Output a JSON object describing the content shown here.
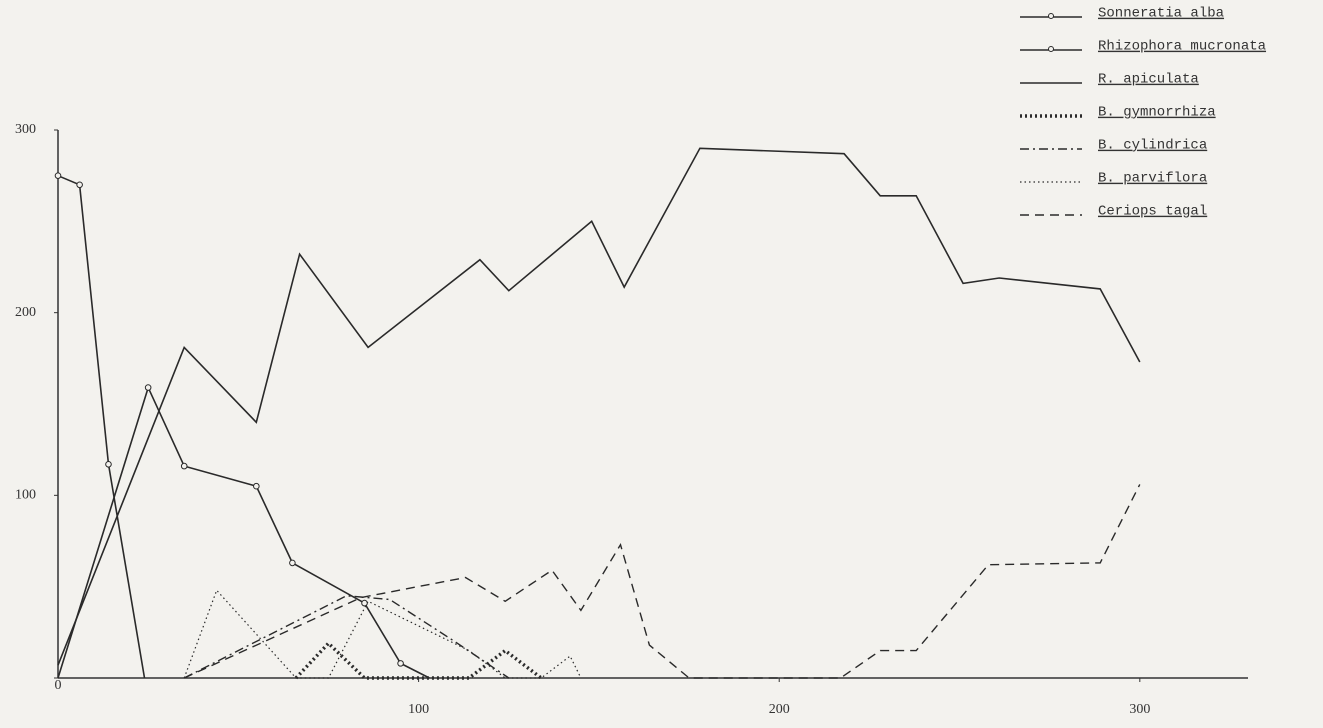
{
  "chart_data": {
    "type": "line",
    "xlim": [
      0,
      330
    ],
    "ylim": [
      0,
      300
    ],
    "xticks": [
      100,
      200,
      300
    ],
    "yticks": [
      0,
      100,
      200,
      300
    ],
    "legend": "top-right",
    "series": [
      {
        "name": "Sonneratia alba",
        "color": "#2a2a2a",
        "line_style": "solid",
        "marker": "circle",
        "x": [
          0,
          6,
          14,
          24
        ],
        "values": [
          275,
          270,
          117,
          0
        ]
      },
      {
        "name": "Rhizophora mucronata",
        "color": "#2a2a2a",
        "line_style": "solid",
        "marker": "circle",
        "x": [
          0,
          25,
          35,
          55,
          65,
          85,
          95,
          103
        ],
        "values": [
          0,
          159,
          116,
          105,
          63,
          41,
          8,
          0
        ]
      },
      {
        "name": "R. apiculata",
        "color": "#2a2a2a",
        "line_style": "solid",
        "x": [
          0,
          35,
          55,
          67,
          86,
          117,
          125,
          148,
          157,
          178,
          218,
          228,
          238,
          251,
          261,
          289,
          300
        ],
        "values": [
          7,
          181,
          140,
          232,
          181,
          229,
          212,
          250,
          214,
          290,
          287,
          264,
          264,
          216,
          219,
          213,
          173
        ]
      },
      {
        "name": "B. gymnorrhiza",
        "color": "#2a2a2a",
        "line_style": "heavy-dotted",
        "x": [
          66,
          75,
          85,
          114,
          124,
          134
        ],
        "values": [
          0,
          19,
          0,
          0,
          15,
          0
        ]
      },
      {
        "name": "B. cylindrica",
        "color": "#2a2a2a",
        "line_style": "dashdot",
        "x": [
          35,
          80,
          92,
          110,
          125
        ],
        "values": [
          0,
          45,
          43,
          20,
          0
        ]
      },
      {
        "name": "B. parviflora",
        "color": "#2a2a2a",
        "line_style": "dotted",
        "x": [
          35,
          44,
          66,
          75,
          86,
          114,
          124,
          134,
          142,
          145
        ],
        "values": [
          0,
          48,
          0,
          0,
          42,
          15,
          0,
          0,
          12,
          0
        ]
      },
      {
        "name": "Ceriops tagal",
        "color": "#2a2a2a",
        "line_style": "dashed",
        "x": [
          35,
          84,
          113,
          124,
          137,
          145,
          156,
          164,
          175,
          217,
          228,
          238,
          258,
          289,
          300
        ],
        "values": [
          0,
          44,
          55,
          42,
          59,
          37,
          73,
          18,
          0,
          0,
          15,
          15,
          62,
          63,
          106
        ]
      }
    ]
  }
}
